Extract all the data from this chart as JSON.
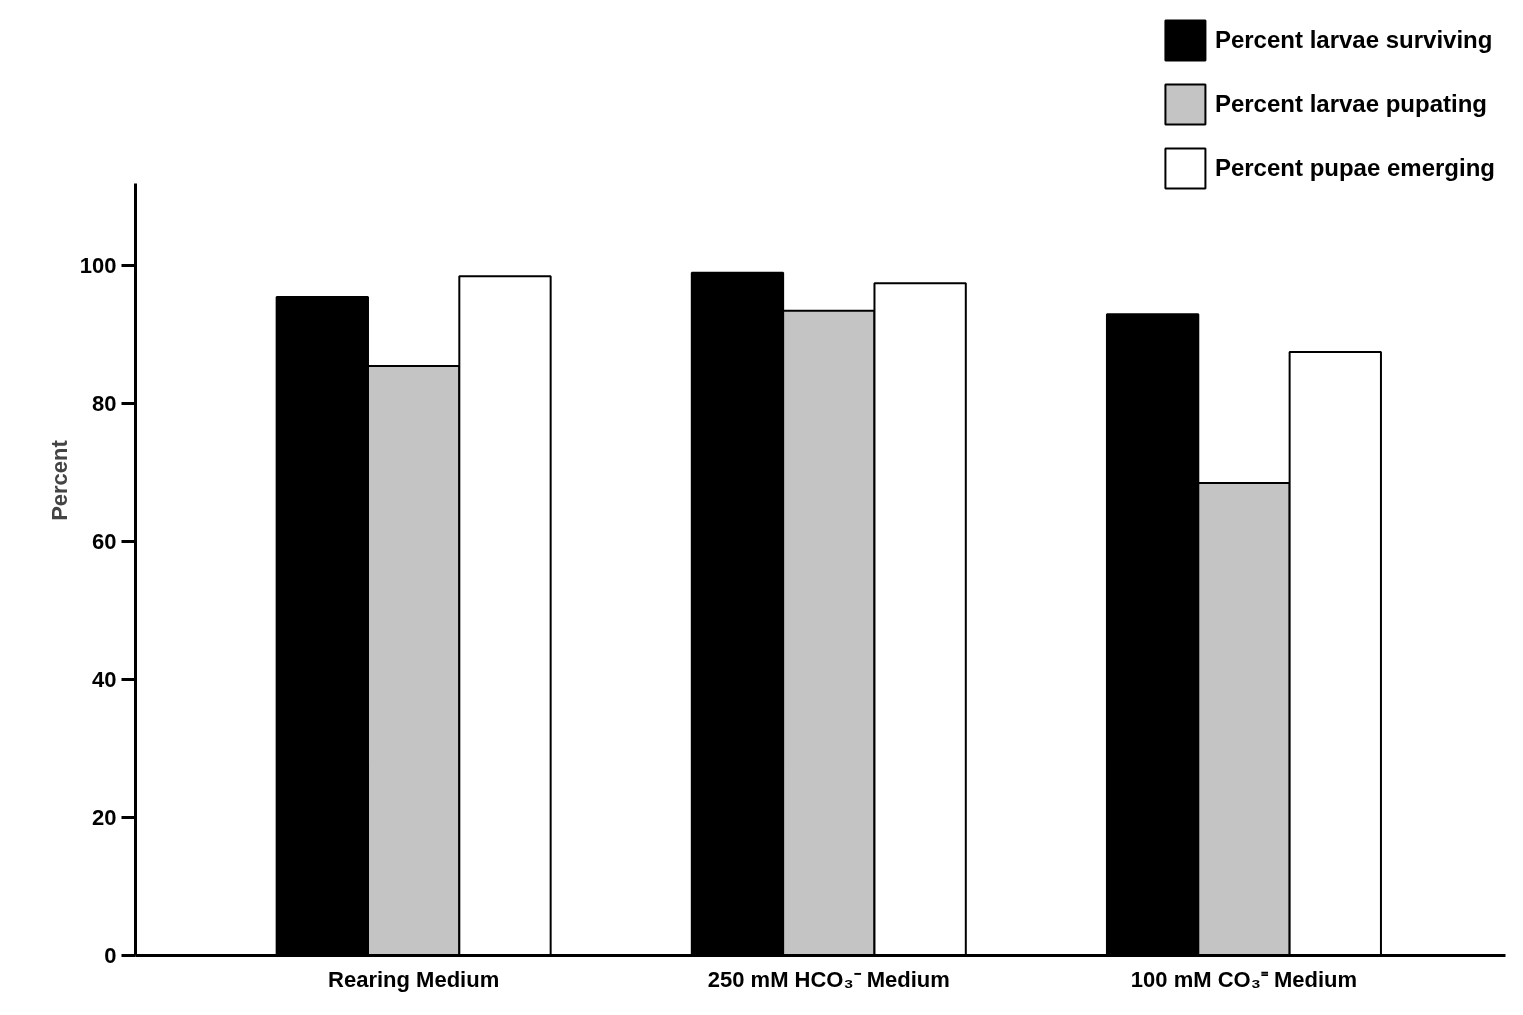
{
  "chart_data": {
    "type": "bar",
    "ylabel": "Percent",
    "categories": [
      "Rearing Medium",
      "250 mM HCO₃⁻ Medium",
      "100 mM CO₃⁼ Medium"
    ],
    "series": [
      {
        "name": "Percent larvae surviving",
        "color": "#000000",
        "values": [
          95.5,
          99,
          93
        ]
      },
      {
        "name": "Percent larvae pupating",
        "color": "#c4c4c4",
        "values": [
          85.5,
          93.5,
          68.5
        ]
      },
      {
        "name": "Percent pupae emerging",
        "color": "#ffffff",
        "values": [
          98.5,
          97.5,
          87.5
        ]
      }
    ],
    "ylim": [
      0,
      112
    ],
    "yticks": [
      0,
      20,
      40,
      60,
      80,
      100
    ],
    "grid": false,
    "legend": "top right"
  }
}
